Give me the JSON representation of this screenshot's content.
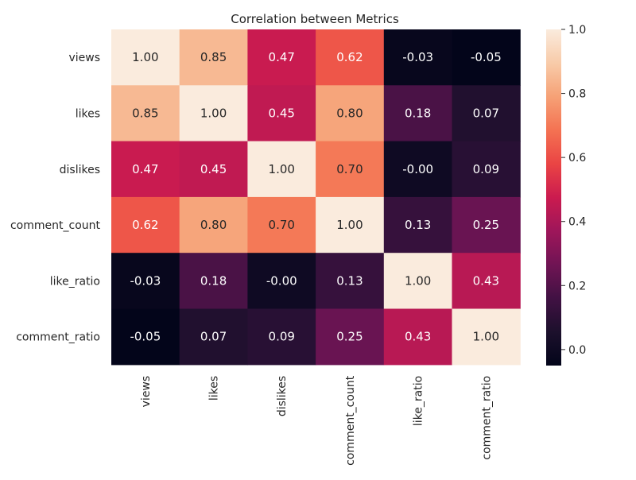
{
  "chart_data": {
    "type": "heatmap",
    "title": "Correlation between Metrics",
    "xlabel": "",
    "ylabel": "",
    "row_labels": [
      "views",
      "likes",
      "dislikes",
      "comment_count",
      "like_ratio",
      "comment_ratio"
    ],
    "col_labels": [
      "views",
      "likes",
      "dislikes",
      "comment_count",
      "like_ratio",
      "comment_ratio"
    ],
    "values": [
      [
        1.0,
        0.85,
        0.47,
        0.62,
        -0.03,
        -0.05
      ],
      [
        0.85,
        1.0,
        0.45,
        0.8,
        0.18,
        0.07
      ],
      [
        0.47,
        0.45,
        1.0,
        0.7,
        -0.0,
        0.09
      ],
      [
        0.62,
        0.8,
        0.7,
        1.0,
        0.13,
        0.25
      ],
      [
        -0.03,
        0.18,
        -0.0,
        0.13,
        1.0,
        0.43
      ],
      [
        -0.05,
        0.07,
        0.09,
        0.25,
        0.43,
        1.0
      ]
    ],
    "value_format": "0.00",
    "colormap": "rocket",
    "colorbar": {
      "min": -0.05,
      "max": 1.0,
      "ticks": [
        0.0,
        0.2,
        0.4,
        0.6,
        0.8,
        1.0
      ],
      "tick_labels": [
        "0.0",
        "0.2",
        "0.4",
        "0.6",
        "0.8",
        "1.0"
      ],
      "placement": "right"
    },
    "grid": false
  }
}
